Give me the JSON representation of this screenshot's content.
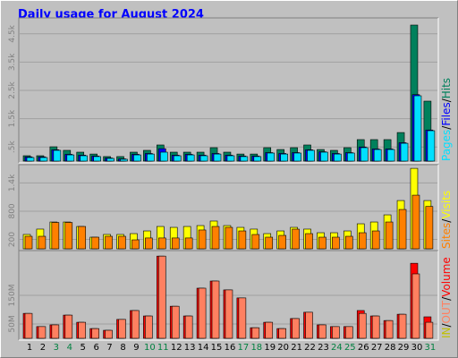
{
  "chart_data": [
    {
      "type": "bar",
      "title": "Daily usage for August 2024",
      "ylim": [
        0,
        5000
      ],
      "yticks": [
        {
          "value": 500,
          "label": ".5k"
        },
        {
          "value": 1500,
          "label": "1.5k"
        },
        {
          "value": 2500,
          "label": "2.5k"
        },
        {
          "value": 3500,
          "label": "3.5k"
        },
        {
          "value": 4500,
          "label": "4.5k"
        }
      ],
      "grid": true,
      "legend_separator": "/",
      "series": [
        {
          "name": "Hits",
          "color": "#00805c",
          "values": [
            190,
            190,
            506,
            380,
            316,
            250,
            160,
            160,
            316,
            380,
            570,
            316,
            316,
            316,
            475,
            316,
            250,
            250,
            475,
            410,
            475,
            570,
            410,
            380,
            475,
            760,
            760,
            760,
            1010,
            4810,
            2120
          ]
        },
        {
          "name": "Files",
          "color": "#0000ff",
          "values": [
            150,
            150,
            400,
            240,
            210,
            180,
            110,
            80,
            240,
            270,
            440,
            210,
            240,
            210,
            270,
            210,
            180,
            180,
            300,
            270,
            300,
            400,
            330,
            270,
            300,
            500,
            430,
            430,
            650,
            2350,
            1100
          ]
        },
        {
          "name": "Pages",
          "color": "#00e0ff",
          "values": [
            127,
            127,
            380,
            220,
            190,
            160,
            95,
            65,
            220,
            250,
            316,
            190,
            220,
            190,
            250,
            190,
            160,
            160,
            285,
            250,
            285,
            380,
            316,
            250,
            285,
            475,
            410,
            410,
            630,
            2310,
            1075
          ]
        }
      ]
    },
    {
      "type": "bar",
      "ylim": [
        0,
        1750
      ],
      "yticks": [
        200,
        800,
        {
          "value": 1400,
          "label": "1.4k"
        }
      ],
      "grid": true,
      "legend_separator": "/",
      "series": [
        {
          "name": "Visits",
          "color": "#ffff00",
          "values": [
            305,
            419,
            570,
            570,
            475,
            247,
            305,
            305,
            323,
            380,
            475,
            456,
            475,
            494,
            590,
            494,
            456,
            419,
            323,
            380,
            456,
            419,
            342,
            342,
            380,
            532,
            570,
            722,
            1026,
            1710,
            1026
          ]
        },
        {
          "name": "Sites",
          "color": "#ff8000",
          "values": [
            266,
            266,
            560,
            560,
            475,
            247,
            266,
            266,
            190,
            230,
            230,
            230,
            230,
            400,
            475,
            456,
            380,
            304,
            247,
            285,
            418,
            323,
            247,
            247,
            266,
            342,
            380,
            570,
            836,
            1140,
            900
          ]
        }
      ]
    },
    {
      "type": "bar",
      "ylim": [
        0,
        300
      ],
      "yticks": [
        {
          "value": 50,
          "label": "50M"
        },
        {
          "value": 150,
          "label": "150M"
        }
      ],
      "grid": true,
      "legend_separator": "/",
      "categories": [
        "1",
        "2",
        "3",
        "4",
        "5",
        "6",
        "7",
        "8",
        "9",
        "10",
        "11",
        "12",
        "13",
        "14",
        "15",
        "16",
        "17",
        "18",
        "19",
        "20",
        "21",
        "22",
        "23",
        "24",
        "25",
        "26",
        "27",
        "28",
        "29",
        "30",
        "31"
      ],
      "category_colors": [
        "#000000",
        "#000000",
        "#008040",
        "#008040",
        "#000000",
        "#000000",
        "#000000",
        "#000000",
        "#000000",
        "#008040",
        "#008040",
        "#000000",
        "#000000",
        "#000000",
        "#000000",
        "#000000",
        "#008040",
        "#008040",
        "#000000",
        "#000000",
        "#000000",
        "#000000",
        "#000000",
        "#008040",
        "#008040",
        "#000000",
        "#000000",
        "#000000",
        "#000000",
        "#000000",
        "#008040"
      ],
      "series": [
        {
          "name": "Volume",
          "color": "#ff0000",
          "values": [
            87,
            41,
            47,
            81,
            56,
            34,
            28,
            66,
            97,
            78,
            287,
            112,
            78,
            175,
            200,
            169,
            141,
            37,
            56,
            34,
            69,
            91,
            47,
            41,
            41,
            97,
            78,
            62,
            84,
            262,
            75
          ]
        },
        {
          "name": "OUT",
          "color": "#ff8060",
          "values": [
            87,
            41,
            47,
            81,
            56,
            34,
            28,
            66,
            97,
            78,
            287,
            112,
            78,
            175,
            200,
            169,
            141,
            37,
            56,
            34,
            69,
            91,
            47,
            41,
            41,
            87,
            78,
            62,
            84,
            225,
            56
          ]
        },
        {
          "name": "IN",
          "color": "#c0c000",
          "values": [
            null,
            null,
            null,
            null,
            null,
            null,
            null,
            null,
            null,
            null,
            null,
            null,
            null,
            null,
            null,
            null,
            null,
            null,
            null,
            null,
            null,
            null,
            null,
            null,
            null,
            null,
            null,
            null,
            null,
            null,
            null
          ]
        }
      ]
    }
  ]
}
